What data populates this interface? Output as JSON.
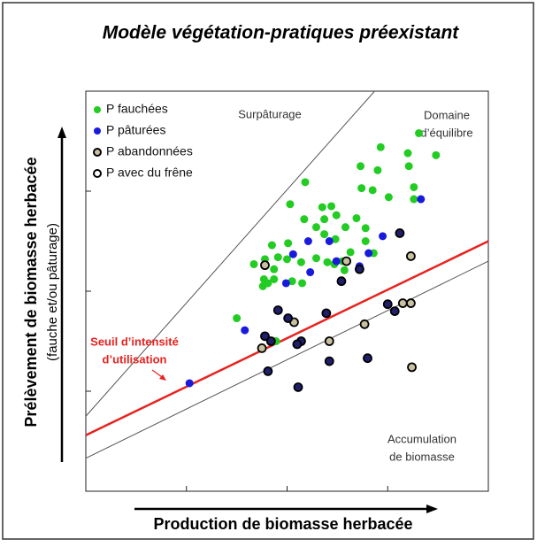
{
  "chart_data": {
    "type": "scatter",
    "title": "Modèle végétation-pratiques préexistant",
    "xlabel": "Production de biomasse herbacée",
    "ylabel": "Prélèvement de biomasse herbacée",
    "ylabel_sub": "(fauche et/ou pâturage)",
    "xlim": [
      0,
      4
    ],
    "ylim": [
      0,
      4
    ],
    "xticks": [
      1,
      2,
      3
    ],
    "yticks": [
      1,
      2,
      3
    ],
    "legend": "upper left",
    "annotations": [
      {
        "lines": [
          "Surpâturage"
        ]
      },
      {
        "lines": [
          "Domaine",
          "d’équilibre"
        ]
      },
      {
        "lines": [
          "Accumulation",
          "de biomasse"
        ]
      },
      {
        "lines": [
          "Seuil d’intensité",
          "d’utilisation"
        ],
        "color": "#e8221f"
      }
    ],
    "reference_lines": [
      {
        "color": "#555555",
        "x": [
          0,
          2.87
        ],
        "y": [
          0.75,
          4
        ]
      },
      {
        "color": "#555555",
        "x": [
          0,
          4
        ],
        "y": [
          0.33,
          2.3
        ]
      },
      {
        "color": "#e8221f",
        "x": [
          0,
          4
        ],
        "y": [
          0.56,
          2.5
        ]
      }
    ],
    "series": [
      {
        "name": "P fauchées",
        "color": "#22cc22",
        "x": [
          3.31,
          3.2,
          3.48,
          3.21,
          2.93,
          2.9,
          3.26,
          3.01,
          3.26,
          2.85,
          2.73,
          2.74,
          2.18,
          2.35,
          2.03,
          2.44,
          2.17,
          2.37,
          2.29,
          2.49,
          2.69,
          2.37,
          2.58,
          2.48,
          2.78,
          2.78,
          2.63,
          2.01,
          1.85,
          1.78,
          1.91,
          2.0,
          2.14,
          2.29,
          2.4,
          2.55,
          1.87,
          1.67,
          1.77,
          1.81,
          1.87,
          1.76,
          2.05,
          2.15,
          2.47,
          1.5,
          1.89,
          2.86,
          2.57
        ],
        "y": [
          3.58,
          3.38,
          3.36,
          3.25,
          3.44,
          3.21,
          3.04,
          2.94,
          2.92,
          3.01,
          3.25,
          3.03,
          3.09,
          2.84,
          2.87,
          2.85,
          2.72,
          2.72,
          2.64,
          2.76,
          2.73,
          2.57,
          2.64,
          2.52,
          2.63,
          2.5,
          2.39,
          2.48,
          2.46,
          2.32,
          2.34,
          2.32,
          2.29,
          2.33,
          2.29,
          2.3,
          2.22,
          2.27,
          2.12,
          2.08,
          2.12,
          2.05,
          2.1,
          2.08,
          2.27,
          1.73,
          1.5,
          2.38,
          2.21
        ]
      },
      {
        "name": "P pâturées",
        "color": "#1a1adc",
        "x": [
          3.33,
          2.95,
          2.81,
          2.42,
          2.21,
          2.06,
          2.23,
          1.99,
          2.72,
          1.03,
          1.58,
          2.49
        ],
        "y": [
          2.92,
          2.55,
          2.38,
          2.5,
          2.5,
          2.37,
          2.19,
          2.08,
          2.25,
          1.08,
          1.61,
          2.3
        ]
      },
      {
        "name": "P abandonnées",
        "color": "#c8c0a0",
        "edgecolor": "#000000",
        "x": [
          3.23,
          3.23,
          3.15,
          2.77,
          2.42,
          2.07,
          1.75,
          3.24,
          2.59,
          1.78
        ],
        "y": [
          2.35,
          1.88,
          1.88,
          1.67,
          1.5,
          1.69,
          1.43,
          1.24,
          2.3,
          2.26
        ]
      },
      {
        "name": "P avec du frêne",
        "color": "#1f1f6b",
        "edgecolor": "#000000",
        "x": [
          3.12,
          2.72,
          2.54,
          1.91,
          2.39,
          2.01,
          2.14,
          3.0,
          3.07,
          1.78,
          1.84,
          2.1,
          2.42,
          2.8,
          1.81,
          2.11
        ],
        "y": [
          2.58,
          2.22,
          2.1,
          1.81,
          1.78,
          1.73,
          1.5,
          1.87,
          1.8,
          1.55,
          1.5,
          1.47,
          1.3,
          1.33,
          1.2,
          1.04
        ]
      }
    ]
  }
}
